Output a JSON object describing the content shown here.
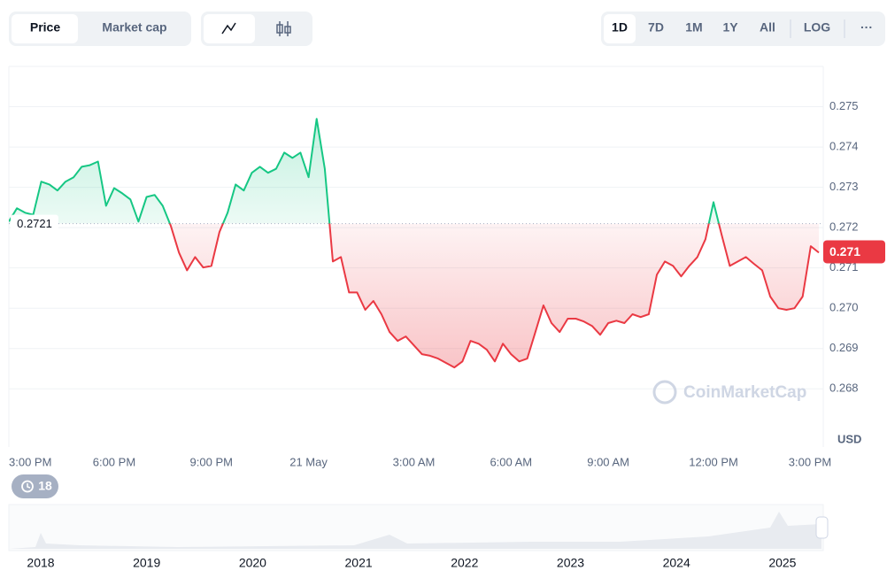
{
  "ui": {
    "tabs": [
      "Price",
      "Market cap"
    ],
    "ranges": [
      "1D",
      "7D",
      "1M",
      "1Y",
      "All"
    ],
    "log": "LOG",
    "more": "···",
    "badge": "18",
    "watermark": "CoinMarketCap"
  },
  "chart_data": {
    "type": "line",
    "categories": [
      "3:00 PM",
      null,
      null,
      null,
      null,
      null,
      null,
      null,
      null,
      null,
      null,
      null,
      null,
      "6:00 PM",
      null,
      null,
      null,
      null,
      null,
      null,
      null,
      null,
      null,
      null,
      null,
      "9:00 PM",
      null,
      null,
      null,
      null,
      null,
      null,
      null,
      null,
      null,
      null,
      null,
      "21 May",
      null,
      null,
      null,
      null,
      null,
      null,
      null,
      null,
      null,
      null,
      null,
      null,
      "3:00 AM",
      null,
      null,
      null,
      null,
      null,
      null,
      null,
      null,
      null,
      null,
      null,
      "6:00 AM",
      null,
      null,
      null,
      null,
      null,
      null,
      null,
      null,
      null,
      null,
      null,
      "9:00 AM",
      null,
      null,
      null,
      null,
      null,
      null,
      null,
      null,
      null,
      null,
      null,
      null,
      "12:00 PM",
      null,
      null,
      null,
      null,
      null,
      null,
      null,
      null,
      null,
      null,
      null,
      "3:00 PM",
      null
    ],
    "series": [
      {
        "name": "Price",
        "color_up": "#16c784",
        "color_down": "#ea3943",
        "values": [
          0.27215,
          0.27248,
          0.27237,
          0.27232,
          0.27314,
          0.27307,
          0.27292,
          0.27314,
          0.27325,
          0.27351,
          0.27355,
          0.27364,
          0.27254,
          0.27298,
          0.27285,
          0.2727,
          0.27215,
          0.27276,
          0.27281,
          0.27254,
          0.27204,
          0.27138,
          0.27094,
          0.27127,
          0.27101,
          0.27105,
          0.27189,
          0.27237,
          0.27307,
          0.27292,
          0.27336,
          0.27351,
          0.27336,
          0.27346,
          0.27386,
          0.27373,
          0.27386,
          0.27325,
          0.2747,
          0.27346,
          0.27116,
          0.27127,
          0.27039,
          0.27039,
          0.26996,
          0.27018,
          0.26985,
          0.26941,
          0.26919,
          0.2693,
          0.26908,
          0.26886,
          0.26882,
          0.26875,
          0.26864,
          0.26853,
          0.26868,
          0.26919,
          0.26912,
          0.26897,
          0.26868,
          0.26912,
          0.26886,
          0.26868,
          0.26875,
          0.26941,
          0.27007,
          0.26963,
          0.26941,
          0.26974,
          0.26974,
          0.26967,
          0.26956,
          0.26934,
          0.26963,
          0.26969,
          0.26963,
          0.26985,
          0.26978,
          0.26985,
          0.27083,
          0.27116,
          0.27105,
          0.27079,
          0.27105,
          0.27127,
          0.27171,
          0.27263,
          0.27182,
          0.27105,
          0.27116,
          0.27127,
          0.2711,
          0.27094,
          0.27029,
          0.27,
          0.26996,
          0.27,
          0.27029,
          0.27154,
          0.27138
        ]
      }
    ],
    "ylim": [
      0.2666,
      0.276
    ],
    "yticks": [
      0.268,
      0.269,
      {
        "value": 0.27,
        "label": "0.270"
      },
      0.271,
      0.272,
      0.273,
      0.274,
      0.275
    ],
    "y_unit": "USD",
    "grid": true,
    "reference": {
      "value": 0.2721,
      "label": "0.2721"
    },
    "price_tag": {
      "value": 0.2714,
      "label": "0.271"
    },
    "navigator": {
      "years": [
        "2018",
        "2019",
        "2020",
        "2021",
        "2022",
        "2023",
        "2024",
        "2025"
      ]
    }
  }
}
